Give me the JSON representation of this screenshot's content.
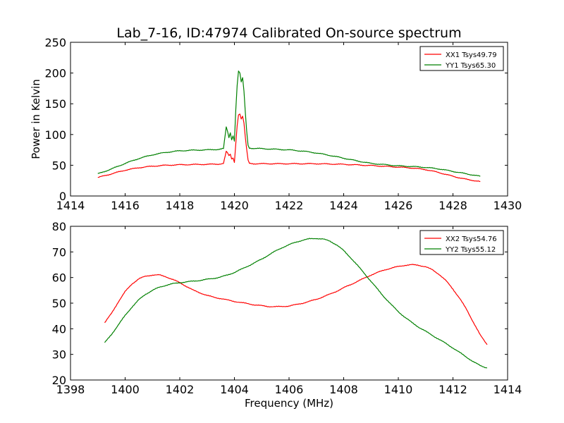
{
  "figure": {
    "title": "Lab_7-16, ID:47974 Calibrated On-source spectrum",
    "xlabel": "Frequency (MHz)",
    "ylabel": "Power in Kelvin"
  },
  "colors": {
    "red": "#ff0000",
    "green": "#008000",
    "axes": "#000000",
    "background": "#ffffff"
  },
  "chart_data": [
    {
      "type": "line",
      "xlim": [
        1414,
        1430
      ],
      "ylim": [
        0,
        250
      ],
      "xticks": [
        1414,
        1416,
        1418,
        1420,
        1422,
        1424,
        1426,
        1428,
        1430
      ],
      "yticks": [
        0,
        50,
        100,
        150,
        200,
        250
      ],
      "legend_position": "top-right",
      "series": [
        {
          "name": "XX1 Tsys49.79",
          "color": "#ff0000",
          "points": [
            [
              1415.0,
              30
            ],
            [
              1415.5,
              36
            ],
            [
              1416.0,
              42
            ],
            [
              1416.5,
              46
            ],
            [
              1417.0,
              48.5
            ],
            [
              1417.5,
              50
            ],
            [
              1418.0,
              50.8
            ],
            [
              1418.5,
              51.2
            ],
            [
              1419.0,
              51.5
            ],
            [
              1419.4,
              51.8
            ],
            [
              1419.6,
              53
            ],
            [
              1419.7,
              72
            ],
            [
              1419.75,
              70
            ],
            [
              1419.8,
              65
            ],
            [
              1419.85,
              68
            ],
            [
              1419.9,
              60
            ],
            [
              1419.95,
              62
            ],
            [
              1420.0,
              55
            ],
            [
              1420.05,
              85
            ],
            [
              1420.1,
              115
            ],
            [
              1420.15,
              132
            ],
            [
              1420.2,
              134
            ],
            [
              1420.25,
              125
            ],
            [
              1420.3,
              130
            ],
            [
              1420.35,
              118
            ],
            [
              1420.4,
              95
            ],
            [
              1420.45,
              75
            ],
            [
              1420.5,
              58
            ],
            [
              1420.55,
              53
            ],
            [
              1420.7,
              52.5
            ],
            [
              1421.0,
              52.5
            ],
            [
              1422.0,
              52.5
            ],
            [
              1423.0,
              52.5
            ],
            [
              1424.0,
              51.5
            ],
            [
              1425.0,
              49.5
            ],
            [
              1426.0,
              47
            ],
            [
              1426.5,
              45.5
            ],
            [
              1427.0,
              43
            ],
            [
              1427.5,
              38
            ],
            [
              1428.0,
              32
            ],
            [
              1428.5,
              27
            ],
            [
              1429.0,
              23.5
            ]
          ]
        },
        {
          "name": "YY1 Tsys65.30",
          "color": "#008000",
          "points": [
            [
              1415.0,
              36
            ],
            [
              1415.5,
              44
            ],
            [
              1416.0,
              53
            ],
            [
              1416.5,
              61
            ],
            [
              1417.0,
              67
            ],
            [
              1417.5,
              71
            ],
            [
              1418.0,
              73.5
            ],
            [
              1418.5,
              74.5
            ],
            [
              1419.0,
              75
            ],
            [
              1419.4,
              75.8
            ],
            [
              1419.6,
              77
            ],
            [
              1419.7,
              112
            ],
            [
              1419.75,
              105
            ],
            [
              1419.8,
              95
            ],
            [
              1419.85,
              103
            ],
            [
              1419.9,
              92
            ],
            [
              1419.95,
              98
            ],
            [
              1420.0,
              90
            ],
            [
              1420.05,
              140
            ],
            [
              1420.1,
              180
            ],
            [
              1420.15,
              203
            ],
            [
              1420.2,
              200
            ],
            [
              1420.25,
              185
            ],
            [
              1420.3,
              192
            ],
            [
              1420.35,
              170
            ],
            [
              1420.4,
              135
            ],
            [
              1420.45,
              105
            ],
            [
              1420.5,
              82
            ],
            [
              1420.55,
              78
            ],
            [
              1420.7,
              77.5
            ],
            [
              1421.0,
              77
            ],
            [
              1421.5,
              76
            ],
            [
              1422.0,
              75
            ],
            [
              1422.5,
              73
            ],
            [
              1423.0,
              70
            ],
            [
              1423.5,
              66
            ],
            [
              1424.0,
              61.5
            ],
            [
              1424.5,
              57
            ],
            [
              1425.0,
              53
            ],
            [
              1425.5,
              51
            ],
            [
              1426.0,
              49
            ],
            [
              1426.5,
              48
            ],
            [
              1427.0,
              46.5
            ],
            [
              1427.5,
              44
            ],
            [
              1428.0,
              40
            ],
            [
              1428.5,
              36
            ],
            [
              1429.0,
              32
            ]
          ]
        }
      ]
    },
    {
      "type": "line",
      "xlim": [
        1398,
        1414
      ],
      "ylim": [
        20,
        80
      ],
      "xticks": [
        1398,
        1400,
        1402,
        1404,
        1406,
        1408,
        1410,
        1412,
        1414
      ],
      "yticks": [
        20,
        30,
        40,
        50,
        60,
        70,
        80
      ],
      "legend_position": "top-right",
      "series": [
        {
          "name": "XX2 Tsys54.76",
          "color": "#ff0000",
          "points": [
            [
              1399.25,
              42.3
            ],
            [
              1399.5,
              46
            ],
            [
              1399.75,
              50.5
            ],
            [
              1400.0,
              54.5
            ],
            [
              1400.25,
              57.5
            ],
            [
              1400.5,
              59.5
            ],
            [
              1400.75,
              60.5
            ],
            [
              1401.0,
              61
            ],
            [
              1401.25,
              61
            ],
            [
              1401.5,
              60.3
            ],
            [
              1401.75,
              59.2
            ],
            [
              1402.0,
              58
            ],
            [
              1402.25,
              56.5
            ],
            [
              1402.5,
              55
            ],
            [
              1402.75,
              54
            ],
            [
              1403.0,
              53
            ],
            [
              1403.25,
              52.3
            ],
            [
              1403.5,
              51.8
            ],
            [
              1403.75,
              51.2
            ],
            [
              1404.0,
              50.7
            ],
            [
              1404.25,
              50.2
            ],
            [
              1404.5,
              49.8
            ],
            [
              1404.75,
              49.3
            ],
            [
              1405.0,
              49
            ],
            [
              1405.25,
              48.7
            ],
            [
              1405.5,
              48.6
            ],
            [
              1405.75,
              48.7
            ],
            [
              1406.0,
              48.9
            ],
            [
              1406.25,
              49.4
            ],
            [
              1406.5,
              50
            ],
            [
              1406.75,
              50.7
            ],
            [
              1407.0,
              51.5
            ],
            [
              1407.25,
              52.5
            ],
            [
              1407.5,
              53.5
            ],
            [
              1407.75,
              54.7
            ],
            [
              1408.0,
              56
            ],
            [
              1408.25,
              57.2
            ],
            [
              1408.5,
              58.5
            ],
            [
              1408.75,
              59.7
            ],
            [
              1409.0,
              61
            ],
            [
              1409.25,
              62
            ],
            [
              1409.5,
              63
            ],
            [
              1409.75,
              63.7
            ],
            [
              1410.0,
              64.3
            ],
            [
              1410.25,
              64.8
            ],
            [
              1410.5,
              65
            ],
            [
              1410.75,
              64.8
            ],
            [
              1411.0,
              64.2
            ],
            [
              1411.25,
              63
            ],
            [
              1411.5,
              61.2
            ],
            [
              1411.75,
              58.7
            ],
            [
              1412.0,
              55.5
            ],
            [
              1412.25,
              51.8
            ],
            [
              1412.5,
              47.5
            ],
            [
              1412.75,
              42.5
            ],
            [
              1413.0,
              37.5
            ],
            [
              1413.25,
              33.8
            ]
          ]
        },
        {
          "name": "YY2 Tsys55.12",
          "color": "#008000",
          "points": [
            [
              1399.25,
              34.5
            ],
            [
              1399.5,
              37.8
            ],
            [
              1399.75,
              41.5
            ],
            [
              1400.0,
              45.2
            ],
            [
              1400.25,
              48.5
            ],
            [
              1400.5,
              51.3
            ],
            [
              1400.75,
              53.5
            ],
            [
              1401.0,
              55
            ],
            [
              1401.25,
              56.2
            ],
            [
              1401.5,
              57
            ],
            [
              1401.75,
              57.6
            ],
            [
              1402.0,
              58
            ],
            [
              1402.25,
              58.3
            ],
            [
              1402.5,
              58.6
            ],
            [
              1402.75,
              58.9
            ],
            [
              1403.0,
              59.3
            ],
            [
              1403.25,
              59.7
            ],
            [
              1403.5,
              60.2
            ],
            [
              1403.75,
              61
            ],
            [
              1404.0,
              62
            ],
            [
              1404.25,
              63.2
            ],
            [
              1404.5,
              64.5
            ],
            [
              1404.75,
              65.8
            ],
            [
              1405.0,
              67.2
            ],
            [
              1405.25,
              68.8
            ],
            [
              1405.5,
              70.3
            ],
            [
              1405.75,
              71.7
            ],
            [
              1406.0,
              72.8
            ],
            [
              1406.25,
              73.8
            ],
            [
              1406.5,
              74.6
            ],
            [
              1406.75,
              75.1
            ],
            [
              1407.0,
              75.3
            ],
            [
              1407.25,
              75
            ],
            [
              1407.5,
              74.2
            ],
            [
              1407.75,
              72.7
            ],
            [
              1408.0,
              70.5
            ],
            [
              1408.25,
              67.8
            ],
            [
              1408.5,
              64.8
            ],
            [
              1408.75,
              61.7
            ],
            [
              1409.0,
              58.5
            ],
            [
              1409.25,
              55.3
            ],
            [
              1409.5,
              52.2
            ],
            [
              1409.75,
              49.3
            ],
            [
              1410.0,
              46.7
            ],
            [
              1410.25,
              44.4
            ],
            [
              1410.5,
              42.4
            ],
            [
              1410.75,
              40.6
            ],
            [
              1411.0,
              39
            ],
            [
              1411.25,
              37.4
            ],
            [
              1411.5,
              35.8
            ],
            [
              1411.75,
              34.2
            ],
            [
              1412.0,
              32.5
            ],
            [
              1412.25,
              30.7
            ],
            [
              1412.5,
              28.9
            ],
            [
              1412.75,
              27.1
            ],
            [
              1413.0,
              25.6
            ],
            [
              1413.25,
              24.7
            ]
          ]
        }
      ]
    }
  ]
}
